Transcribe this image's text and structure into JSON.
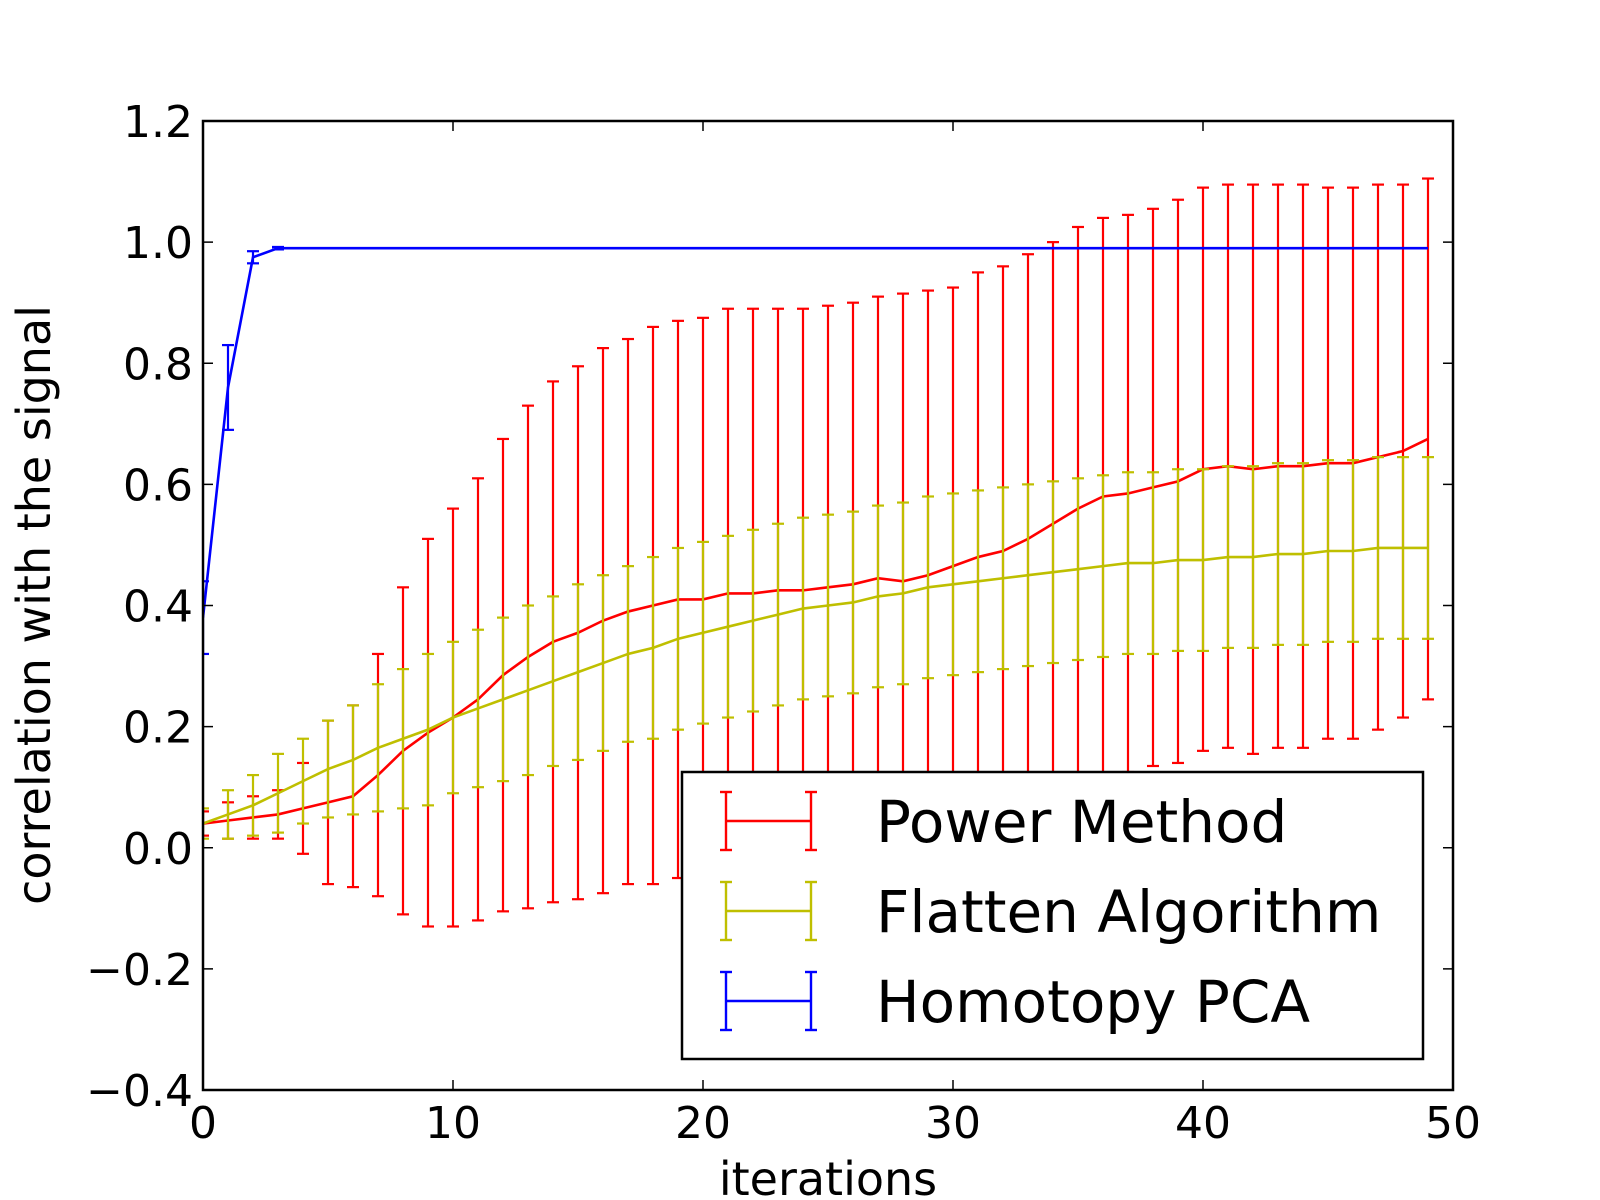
{
  "chart_data": {
    "type": "line",
    "title": "",
    "xlabel": "iterations",
    "ylabel": "correlation with the signal",
    "xlim": [
      0,
      50
    ],
    "ylim": [
      -0.4,
      1.2
    ],
    "xticks": [
      0,
      10,
      20,
      30,
      40,
      50
    ],
    "xtick_labels": [
      "0",
      "10",
      "20",
      "30",
      "40",
      "50"
    ],
    "yticks": [
      -0.4,
      -0.2,
      0.0,
      0.2,
      0.4,
      0.6,
      0.8,
      1.0,
      1.2
    ],
    "ytick_labels": [
      "−0.4",
      "−0.2",
      "0.0",
      "0.2",
      "0.4",
      "0.6",
      "0.8",
      "1.0",
      "1.2"
    ],
    "grid": false,
    "legend_position": "lower-right",
    "x": [
      0,
      1,
      2,
      3,
      4,
      5,
      6,
      7,
      8,
      9,
      10,
      11,
      12,
      13,
      14,
      15,
      16,
      17,
      18,
      19,
      20,
      21,
      22,
      23,
      24,
      25,
      26,
      27,
      28,
      29,
      30,
      31,
      32,
      33,
      34,
      35,
      36,
      37,
      38,
      39,
      40,
      41,
      42,
      43,
      44,
      45,
      46,
      47,
      48,
      49
    ],
    "series": [
      {
        "name": "Power Method",
        "color": "#ff0000",
        "values": [
          0.04,
          0.045,
          0.05,
          0.055,
          0.065,
          0.075,
          0.085,
          0.12,
          0.16,
          0.19,
          0.215,
          0.245,
          0.285,
          0.315,
          0.34,
          0.355,
          0.375,
          0.39,
          0.4,
          0.41,
          0.41,
          0.42,
          0.42,
          0.425,
          0.425,
          0.43,
          0.435,
          0.445,
          0.44,
          0.45,
          0.465,
          0.48,
          0.49,
          0.51,
          0.535,
          0.56,
          0.58,
          0.585,
          0.595,
          0.605,
          0.625,
          0.63,
          0.625,
          0.63,
          0.63,
          0.635,
          0.635,
          0.645,
          0.655,
          0.675
        ],
        "error": [
          0.02,
          0.03,
          0.035,
          0.04,
          0.075,
          0.135,
          0.15,
          0.2,
          0.27,
          0.32,
          0.345,
          0.365,
          0.39,
          0.415,
          0.43,
          0.44,
          0.45,
          0.45,
          0.46,
          0.46,
          0.465,
          0.47,
          0.47,
          0.465,
          0.465,
          0.465,
          0.465,
          0.465,
          0.475,
          0.47,
          0.46,
          0.47,
          0.47,
          0.47,
          0.465,
          0.465,
          0.46,
          0.46,
          0.46,
          0.465,
          0.465,
          0.465,
          0.47,
          0.465,
          0.465,
          0.455,
          0.455,
          0.45,
          0.44,
          0.43
        ]
      },
      {
        "name": "Flatten Algorithm",
        "color": "#bfbf00",
        "values": [
          0.04,
          0.055,
          0.07,
          0.09,
          0.11,
          0.13,
          0.145,
          0.165,
          0.18,
          0.195,
          0.215,
          0.23,
          0.245,
          0.26,
          0.275,
          0.29,
          0.305,
          0.32,
          0.33,
          0.345,
          0.355,
          0.365,
          0.375,
          0.385,
          0.395,
          0.4,
          0.405,
          0.415,
          0.42,
          0.43,
          0.435,
          0.44,
          0.445,
          0.45,
          0.455,
          0.46,
          0.465,
          0.47,
          0.47,
          0.475,
          0.475,
          0.48,
          0.48,
          0.485,
          0.485,
          0.49,
          0.49,
          0.495,
          0.495,
          0.495
        ],
        "error": [
          0.025,
          0.04,
          0.05,
          0.065,
          0.07,
          0.08,
          0.09,
          0.105,
          0.115,
          0.125,
          0.125,
          0.13,
          0.135,
          0.14,
          0.14,
          0.145,
          0.145,
          0.145,
          0.15,
          0.15,
          0.15,
          0.15,
          0.15,
          0.15,
          0.15,
          0.15,
          0.15,
          0.15,
          0.15,
          0.15,
          0.15,
          0.15,
          0.15,
          0.15,
          0.15,
          0.15,
          0.15,
          0.15,
          0.15,
          0.15,
          0.15,
          0.15,
          0.15,
          0.15,
          0.15,
          0.15,
          0.15,
          0.15,
          0.15,
          0.15
        ]
      },
      {
        "name": "Homotopy PCA",
        "color": "#0000ff",
        "values": [
          0.38,
          0.76,
          0.975,
          0.99,
          0.99,
          0.99,
          0.99,
          0.99,
          0.99,
          0.99,
          0.99,
          0.99,
          0.99,
          0.99,
          0.99,
          0.99,
          0.99,
          0.99,
          0.99,
          0.99,
          0.99,
          0.99,
          0.99,
          0.99,
          0.99,
          0.99,
          0.99,
          0.99,
          0.99,
          0.99,
          0.99,
          0.99,
          0.99,
          0.99,
          0.99,
          0.99,
          0.99,
          0.99,
          0.99,
          0.99,
          0.99,
          0.99,
          0.99,
          0.99,
          0.99,
          0.99,
          0.99,
          0.99,
          0.99,
          0.99
        ],
        "error": [
          0.06,
          0.07,
          0.01,
          0.002,
          0.0,
          0.0,
          0.0,
          0.0,
          0.0,
          0.0,
          0.0,
          0.0,
          0.0,
          0.0,
          0.0,
          0.0,
          0.0,
          0.0,
          0.0,
          0.0,
          0.0,
          0.0,
          0.0,
          0.0,
          0.0,
          0.0,
          0.0,
          0.0,
          0.0,
          0.0,
          0.0,
          0.0,
          0.0,
          0.0,
          0.0,
          0.0,
          0.0,
          0.0,
          0.0,
          0.0,
          0.0,
          0.0,
          0.0,
          0.0,
          0.0,
          0.0,
          0.0,
          0.0,
          0.0,
          0.0
        ]
      }
    ]
  }
}
